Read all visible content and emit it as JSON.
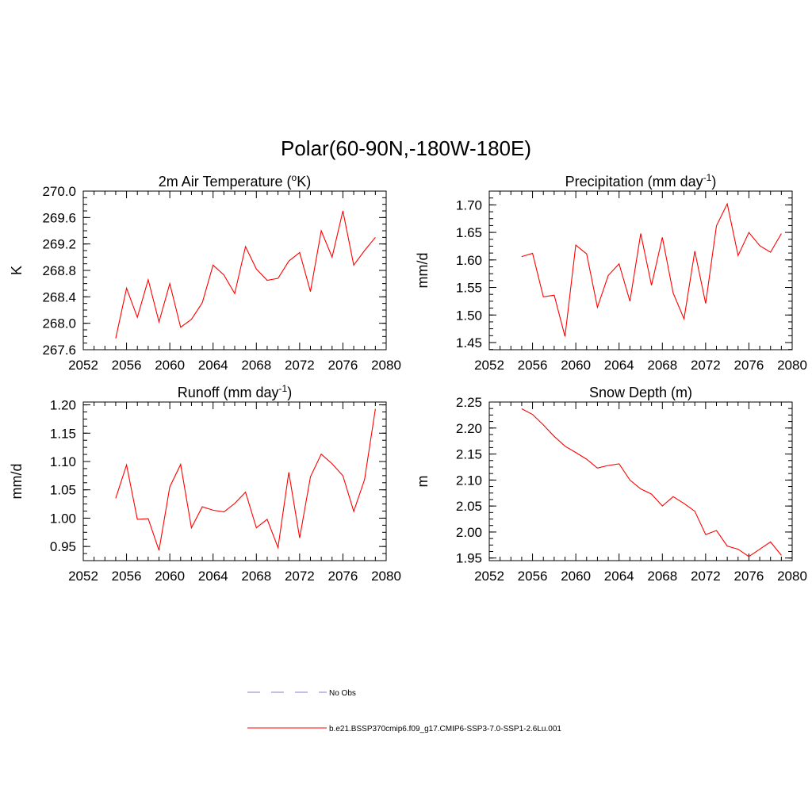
{
  "title": "Polar(60-90N,-180W-180E)",
  "colors": {
    "model": "#ff0000",
    "obs": "#9999dd"
  },
  "legend": {
    "obs_label": "No Obs",
    "model_label": "b.e21.BSSP370cmip6.f09_g17.CMIP6-SSP3-7.0-SSP1-2.6Lu.001"
  },
  "chart_data": [
    {
      "type": "line",
      "title": "2m Air Temperature (oK)",
      "title_main": "2m Air Temperature (",
      "title_sup": "o",
      "title_end": "K)",
      "xlabel": "",
      "ylabel": "K",
      "xlim": [
        2052,
        2080
      ],
      "ylim": [
        267.6,
        270.0
      ],
      "xticks": [
        2052,
        2056,
        2060,
        2064,
        2068,
        2072,
        2076,
        2080
      ],
      "yticks": [
        "267.6",
        "268.0",
        "268.4",
        "268.8",
        "269.2",
        "269.6",
        "270.0"
      ],
      "x": [
        2055,
        2056,
        2057,
        2058,
        2059,
        2060,
        2061,
        2062,
        2063,
        2064,
        2065,
        2066,
        2067,
        2068,
        2069,
        2070,
        2071,
        2072,
        2073,
        2074,
        2075,
        2076,
        2077,
        2078,
        2079
      ],
      "series": [
        {
          "values": [
            267.77,
            268.53,
            268.09,
            268.66,
            268.02,
            268.6,
            267.94,
            268.06,
            268.31,
            268.88,
            268.73,
            268.45,
            269.16,
            268.82,
            268.65,
            268.68,
            268.94,
            269.07,
            268.48,
            269.4,
            269.0,
            269.7,
            268.88,
            269.1,
            269.3
          ]
        }
      ]
    },
    {
      "type": "line",
      "title": "Precipitation (mm day-1)",
      "title_main": "Precipitation (mm day",
      "title_sup": "-1",
      "title_end": ")",
      "xlabel": "",
      "ylabel": "mm/d",
      "xlim": [
        2052,
        2080
      ],
      "ylim": [
        1.437,
        1.725
      ],
      "xticks": [
        2052,
        2056,
        2060,
        2064,
        2068,
        2072,
        2076,
        2080
      ],
      "yticks": [
        "1.45",
        "1.50",
        "1.55",
        "1.60",
        "1.65",
        "1.70"
      ],
      "x": [
        2055,
        2056,
        2057,
        2058,
        2059,
        2060,
        2061,
        2062,
        2063,
        2064,
        2065,
        2066,
        2067,
        2068,
        2069,
        2070,
        2071,
        2072,
        2073,
        2074,
        2075,
        2076,
        2077,
        2078,
        2079
      ],
      "series": [
        {
          "values": [
            1.606,
            1.612,
            1.533,
            1.536,
            1.461,
            1.627,
            1.611,
            1.514,
            1.572,
            1.593,
            1.525,
            1.648,
            1.554,
            1.641,
            1.54,
            1.493,
            1.616,
            1.521,
            1.662,
            1.702,
            1.608,
            1.65,
            1.626,
            1.614,
            1.648
          ]
        }
      ]
    },
    {
      "type": "line",
      "title": "Runoff (mm day-1)",
      "title_main": "Runoff (mm day",
      "title_sup": "-1",
      "title_end": ")",
      "xlabel": "",
      "ylabel": "mm/d",
      "xlim": [
        2052,
        2080
      ],
      "ylim": [
        0.925,
        1.205
      ],
      "xticks": [
        2052,
        2056,
        2060,
        2064,
        2068,
        2072,
        2076,
        2080
      ],
      "yticks": [
        "0.95",
        "1.00",
        "1.05",
        "1.10",
        "1.15",
        "1.20"
      ],
      "x": [
        2055,
        2056,
        2057,
        2058,
        2059,
        2060,
        2061,
        2062,
        2063,
        2064,
        2065,
        2066,
        2067,
        2068,
        2069,
        2070,
        2071,
        2072,
        2073,
        2074,
        2075,
        2076,
        2077,
        2078,
        2079
      ],
      "series": [
        {
          "values": [
            1.035,
            1.094,
            0.998,
            0.999,
            0.943,
            1.055,
            1.095,
            0.983,
            1.02,
            1.014,
            1.011,
            1.026,
            1.046,
            0.983,
            0.998,
            0.948,
            1.081,
            0.965,
            1.073,
            1.113,
            1.096,
            1.075,
            1.012,
            1.068,
            1.193
          ]
        }
      ]
    },
    {
      "type": "line",
      "title": "Snow Depth (m)",
      "title_main": "Snow Depth (m)",
      "title_sup": "",
      "title_end": "",
      "xlabel": "",
      "ylabel": "m",
      "xlim": [
        2052,
        2080
      ],
      "ylim": [
        1.945,
        2.25
      ],
      "xticks": [
        2052,
        2056,
        2060,
        2064,
        2068,
        2072,
        2076,
        2080
      ],
      "yticks": [
        "1.95",
        "2.00",
        "2.05",
        "2.10",
        "2.15",
        "2.20",
        "2.25"
      ],
      "x": [
        2055,
        2056,
        2057,
        2058,
        2059,
        2060,
        2061,
        2062,
        2063,
        2064,
        2065,
        2066,
        2067,
        2068,
        2069,
        2070,
        2071,
        2072,
        2073,
        2074,
        2075,
        2076,
        2077,
        2078,
        2079
      ],
      "series": [
        {
          "values": [
            2.237,
            2.226,
            2.206,
            2.184,
            2.165,
            2.153,
            2.14,
            2.123,
            2.128,
            2.131,
            2.1,
            2.083,
            2.073,
            2.05,
            2.068,
            2.055,
            2.04,
            1.995,
            2.003,
            1.973,
            1.967,
            1.953,
            1.967,
            1.981,
            1.955
          ]
        }
      ]
    }
  ]
}
